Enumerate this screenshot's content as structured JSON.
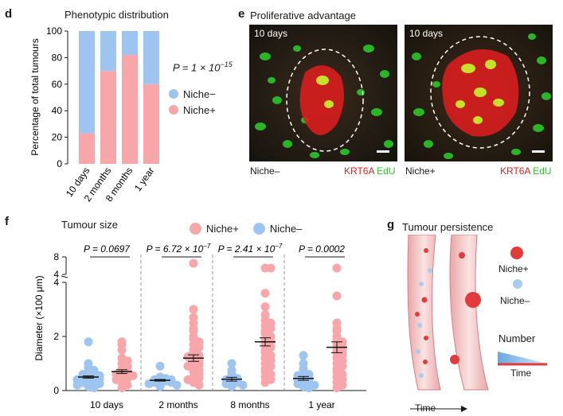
{
  "panel_d": {
    "letter": "d",
    "title": "Phenotypic distribution",
    "pvalue": "P = 1 × 10",
    "pvalue_exp": "−15",
    "legend": [
      {
        "label": "Niche−",
        "color": "#9ec5f0"
      },
      {
        "label": "Niche+",
        "color": "#f7a7aa"
      }
    ]
  },
  "panel_e": {
    "letter": "e",
    "title": "Proliferative advantage",
    "images": [
      {
        "time": "10 days",
        "group": "Niche–",
        "marker1": "KRT6A",
        "marker2": "EdU"
      },
      {
        "time": "10 days",
        "group": "Niche+",
        "marker1": "KRT6A",
        "marker2": "EdU"
      }
    ],
    "colors": {
      "krt6a": "#e21b1b",
      "edu": "#2bd12b"
    }
  },
  "panel_f": {
    "letter": "f",
    "title": "Tumour size",
    "legend": [
      {
        "label": "Niche+",
        "color": "#f7a7aa"
      },
      {
        "label": "Niche–",
        "color": "#9ec5f0"
      }
    ],
    "pvalues": [
      {
        "text": "P = 0.0697"
      },
      {
        "text": "P = 6.72 × 10",
        "exp": "−7"
      },
      {
        "text": "P = 2.41 × 10",
        "exp": "−7"
      },
      {
        "text": "P = 0.0002"
      }
    ]
  },
  "panel_g": {
    "letter": "g",
    "title": "Tumour persistence",
    "legend": [
      {
        "label": "Niche+",
        "color": "#e23b3b"
      },
      {
        "label": "Niche–",
        "color": "#a6cdee"
      }
    ],
    "number_label": "Number",
    "time_label": "Time",
    "axis_label": "Time"
  },
  "chart_data": [
    {
      "type": "bar",
      "stacked": true,
      "ylabel": "Percentage of total tumours",
      "ylim": [
        0,
        100
      ],
      "yticks": [
        0,
        20,
        40,
        60,
        80,
        100
      ],
      "categories": [
        "10 days",
        "2 months",
        "8 months",
        "1 year"
      ],
      "series": [
        {
          "name": "Niche+",
          "color": "#f7a7aa",
          "values": [
            23,
            70,
            82,
            60
          ]
        },
        {
          "name": "Niche−",
          "color": "#9ec5f0",
          "values": [
            77,
            30,
            18,
            40
          ]
        }
      ]
    },
    {
      "type": "scatter",
      "ylabel": "Diameter (×100 μm)",
      "yticks_lower": [
        0,
        2,
        4
      ],
      "yticks_upper": [
        4,
        8
      ],
      "categories": [
        "10 days",
        "2 months",
        "8 months",
        "1 year"
      ],
      "series": [
        {
          "name": "Niche–",
          "color": "#9ec5f0",
          "means": [
            0.5,
            0.38,
            0.42,
            0.45
          ],
          "errors": [
            0.04,
            0.03,
            0.07,
            0.07
          ],
          "points": [
            [
              1.8,
              1.0,
              0.85,
              0.75,
              0.7,
              0.65,
              0.6,
              0.55,
              0.5,
              0.5,
              0.45,
              0.4,
              0.4,
              0.35,
              0.3,
              0.3,
              0.25,
              0.2,
              0.15,
              0.1
            ],
            [
              0.9,
              0.5,
              0.45,
              0.4,
              0.4,
              0.35,
              0.35,
              0.3,
              0.3,
              0.25,
              0.2,
              0.15
            ],
            [
              1.0,
              0.75,
              0.6,
              0.5,
              0.45,
              0.4,
              0.35,
              0.3,
              0.25,
              0.2,
              0.15
            ],
            [
              1.3,
              1.0,
              0.8,
              0.7,
              0.6,
              0.55,
              0.5,
              0.45,
              0.4,
              0.35,
              0.3,
              0.25,
              0.2,
              0.15,
              0.1
            ]
          ]
        },
        {
          "name": "Niche+",
          "color": "#f7a7aa",
          "means": [
            0.7,
            1.2,
            1.8,
            1.6
          ],
          "errors": [
            0.07,
            0.12,
            0.15,
            0.2
          ],
          "points": [
            [
              1.8,
              1.7,
              1.5,
              1.2,
              1.1,
              1.0,
              0.9,
              0.8,
              0.75,
              0.7,
              0.65,
              0.6,
              0.55,
              0.5,
              0.45,
              0.4,
              0.3,
              0.2,
              0.1
            ],
            [
              6.3,
              3.0,
              2.7,
              2.5,
              2.3,
              2.2,
              2.0,
              1.9,
              1.8,
              1.7,
              1.6,
              1.5,
              1.4,
              1.3,
              1.25,
              1.2,
              1.1,
              1.0,
              0.95,
              0.9,
              0.8,
              0.75,
              0.7,
              0.6,
              0.5,
              0.45,
              0.4,
              0.3,
              0.2
            ],
            [
              4.6,
              4.5,
              3.6,
              3.1,
              2.8,
              2.6,
              2.5,
              2.4,
              2.3,
              2.2,
              2.1,
              2.0,
              1.9,
              1.8,
              1.7,
              1.6,
              1.5,
              1.4,
              1.3,
              1.2,
              1.1,
              1.0,
              0.9,
              0.8,
              0.7,
              0.6,
              0.5,
              0.4,
              0.3
            ],
            [
              4.7,
              3.5,
              2.5,
              2.3,
              2.2,
              2.0,
              1.9,
              1.8,
              1.7,
              1.6,
              1.5,
              1.45,
              1.4,
              1.3,
              1.2,
              1.1,
              1.0,
              0.9,
              0.8,
              0.7,
              0.6,
              0.5,
              0.4,
              0.3,
              0.2,
              0.1
            ]
          ]
        }
      ]
    }
  ]
}
